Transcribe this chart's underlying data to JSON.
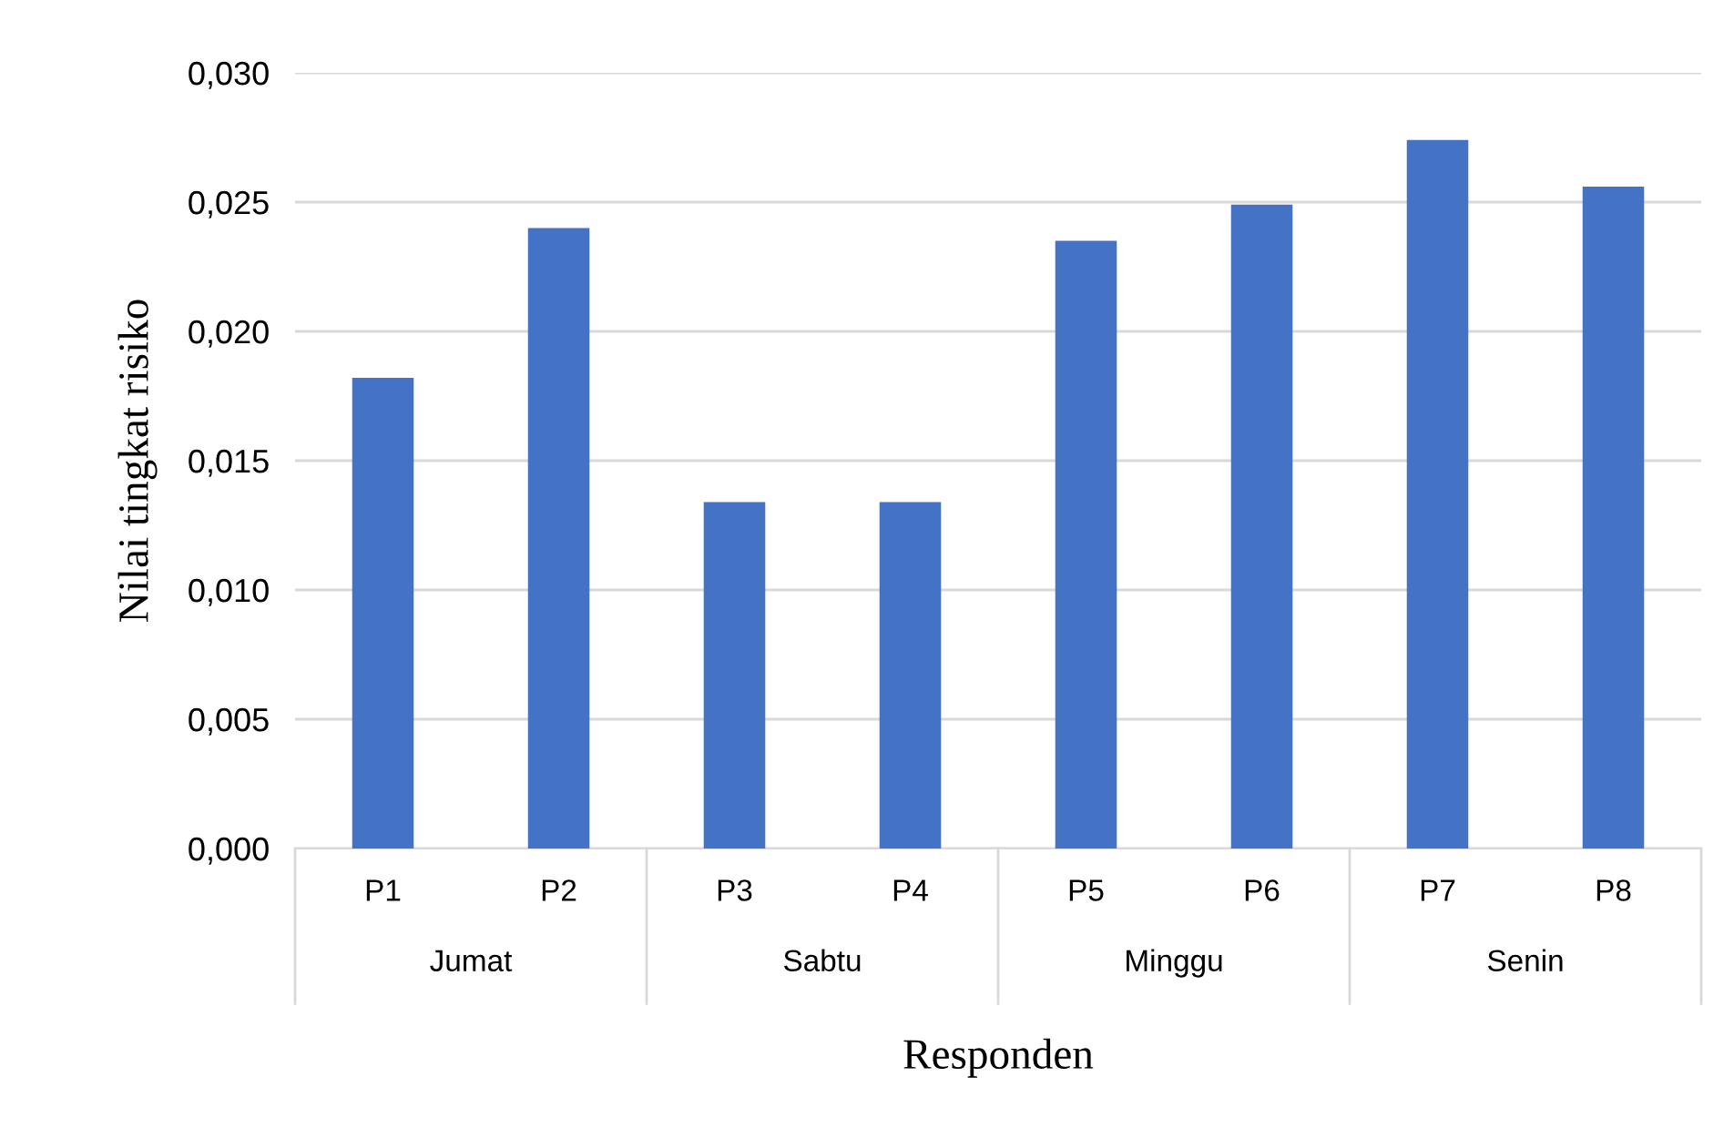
{
  "chart_data": {
    "type": "bar",
    "xlabel": "Responden",
    "ylabel": "Nilai tingkat risiko",
    "categories": [
      "P1",
      "P2",
      "P3",
      "P4",
      "P5",
      "P6",
      "P7",
      "P8"
    ],
    "values": [
      0.0182,
      0.024,
      0.0134,
      0.0134,
      0.0235,
      0.0249,
      0.0274,
      0.0256
    ],
    "color": "#4472c4",
    "annotations": [
      "Jumat",
      "Sabtu",
      "Minggu",
      "Senin"
    ],
    "ylim": [
      0,
      0.03
    ],
    "yticks": [
      {
        "value": 0,
        "label": "0,000"
      },
      {
        "value": 0.005,
        "label": "0,005"
      },
      {
        "value": 0.01,
        "label": "0,010"
      },
      {
        "value": 0.015,
        "label": "0,015"
      },
      {
        "value": 0.02,
        "label": "0,020"
      },
      {
        "value": 0.025,
        "label": "0,025"
      },
      {
        "value": 0.03,
        "label": "0,030"
      }
    ],
    "grid": "y",
    "legend": false
  }
}
